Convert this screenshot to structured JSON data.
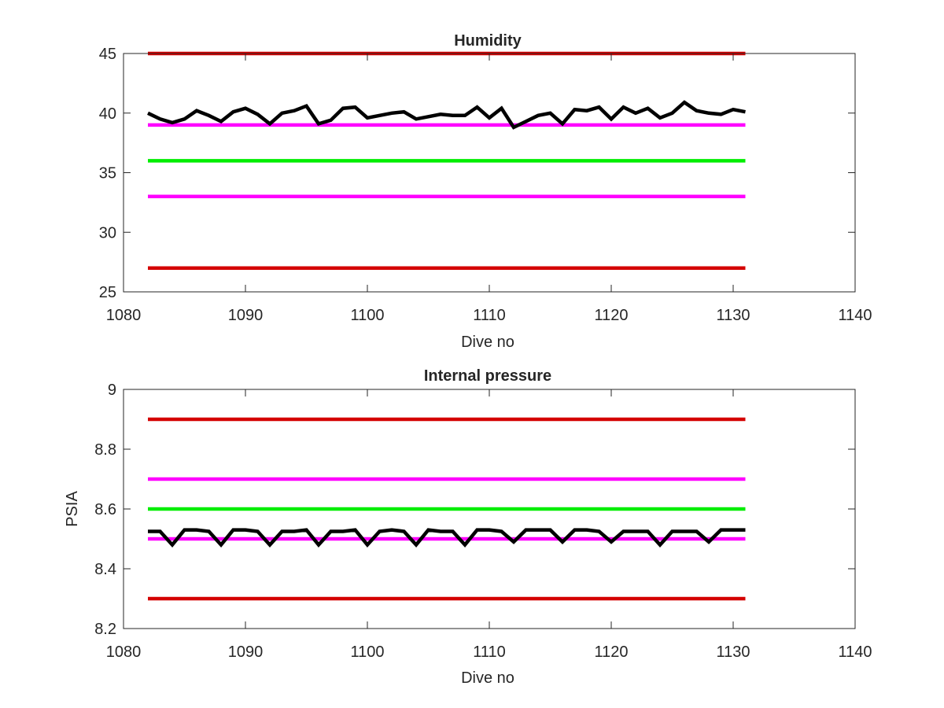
{
  "chart_data": [
    {
      "type": "line",
      "title": "Humidity",
      "xlabel": "Dive no",
      "ylabel": "",
      "xlim": [
        1080,
        1140
      ],
      "ylim": [
        25,
        45
      ],
      "xticks": [
        1080,
        1090,
        1100,
        1110,
        1120,
        1130,
        1140
      ],
      "yticks": [
        25,
        30,
        35,
        40,
        45
      ],
      "grid": false,
      "legend": "none",
      "thresholds": [
        {
          "y": 45,
          "x": [
            1082,
            1131
          ],
          "color": "#d40000"
        },
        {
          "y": 39,
          "x": [
            1082,
            1131
          ],
          "color": "#ff00ff"
        },
        {
          "y": 36,
          "x": [
            1082,
            1131
          ],
          "color": "#00ee00"
        },
        {
          "y": 33,
          "x": [
            1082,
            1131
          ],
          "color": "#ff00ff"
        },
        {
          "y": 27,
          "x": [
            1082,
            1131
          ],
          "color": "#d40000"
        }
      ],
      "series": [
        {
          "color": "#000000",
          "x": [
            1082,
            1083,
            1084,
            1085,
            1086,
            1087,
            1088,
            1089,
            1090,
            1091,
            1092,
            1093,
            1094,
            1095,
            1096,
            1097,
            1098,
            1099,
            1100,
            1101,
            1102,
            1103,
            1104,
            1105,
            1106,
            1107,
            1108,
            1109,
            1110,
            1111,
            1112,
            1113,
            1114,
            1115,
            1116,
            1117,
            1118,
            1119,
            1120,
            1121,
            1122,
            1123,
            1124,
            1125,
            1126,
            1127,
            1128,
            1129,
            1130,
            1131
          ],
          "values": [
            40.0,
            39.5,
            39.2,
            39.5,
            40.2,
            39.8,
            39.3,
            40.1,
            40.4,
            39.9,
            39.1,
            40.0,
            40.2,
            40.6,
            39.1,
            39.4,
            40.4,
            40.5,
            39.6,
            39.8,
            40.0,
            40.1,
            39.5,
            39.7,
            39.9,
            39.8,
            39.8,
            40.5,
            39.6,
            40.4,
            38.8,
            39.3,
            39.8,
            40.0,
            39.1,
            40.3,
            40.2,
            40.5,
            39.5,
            40.5,
            40.0,
            40.4,
            39.6,
            40.0,
            40.9,
            40.2,
            40.0,
            39.9,
            40.3,
            40.1
          ]
        }
      ]
    },
    {
      "type": "line",
      "title": "Internal pressure",
      "xlabel": "Dive no",
      "ylabel": "PSIA",
      "xlim": [
        1080,
        1140
      ],
      "ylim": [
        8.2,
        9.0
      ],
      "xticks": [
        1080,
        1090,
        1100,
        1110,
        1120,
        1130,
        1140
      ],
      "yticks": [
        8.2,
        8.4,
        8.6,
        8.8,
        9.0
      ],
      "ytick_labels": [
        "8.2",
        "8.4",
        "8.6",
        "8.8",
        "9"
      ],
      "grid": false,
      "legend": "none",
      "thresholds": [
        {
          "y": 8.9,
          "x": [
            1082,
            1131
          ],
          "color": "#d40000"
        },
        {
          "y": 8.7,
          "x": [
            1082,
            1131
          ],
          "color": "#ff00ff"
        },
        {
          "y": 8.6,
          "x": [
            1082,
            1131
          ],
          "color": "#00ee00"
        },
        {
          "y": 8.5,
          "x": [
            1082,
            1131
          ],
          "color": "#ff00ff"
        },
        {
          "y": 8.3,
          "x": [
            1082,
            1131
          ],
          "color": "#d40000"
        }
      ],
      "series": [
        {
          "color": "#000000",
          "x": [
            1082,
            1083,
            1084,
            1085,
            1086,
            1087,
            1088,
            1089,
            1090,
            1091,
            1092,
            1093,
            1094,
            1095,
            1096,
            1097,
            1098,
            1099,
            1100,
            1101,
            1102,
            1103,
            1104,
            1105,
            1106,
            1107,
            1108,
            1109,
            1110,
            1111,
            1112,
            1113,
            1114,
            1115,
            1116,
            1117,
            1118,
            1119,
            1120,
            1121,
            1122,
            1123,
            1124,
            1125,
            1126,
            1127,
            1128,
            1129,
            1130,
            1131
          ],
          "values": [
            8.525,
            8.525,
            8.48,
            8.53,
            8.53,
            8.525,
            8.48,
            8.53,
            8.53,
            8.525,
            8.48,
            8.525,
            8.525,
            8.53,
            8.48,
            8.525,
            8.525,
            8.53,
            8.48,
            8.525,
            8.53,
            8.525,
            8.48,
            8.53,
            8.525,
            8.525,
            8.48,
            8.53,
            8.53,
            8.525,
            8.49,
            8.53,
            8.53,
            8.53,
            8.49,
            8.53,
            8.53,
            8.525,
            8.49,
            8.525,
            8.525,
            8.525,
            8.48,
            8.525,
            8.525,
            8.525,
            8.49,
            8.53,
            8.53,
            8.53
          ]
        }
      ]
    }
  ]
}
